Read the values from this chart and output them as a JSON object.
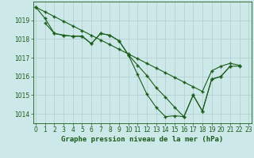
{
  "title": "Graphe pression niveau de la mer (hPa)",
  "hours": [
    0,
    1,
    2,
    3,
    4,
    5,
    6,
    7,
    8,
    9,
    10,
    11,
    12,
    13,
    14,
    15,
    16,
    17,
    18,
    19,
    20,
    21,
    22,
    23
  ],
  "line1": [
    1019.7,
    1019.1,
    1018.3,
    1018.2,
    1018.15,
    1018.15,
    1017.75,
    1018.3,
    1018.2,
    1017.9,
    1017.15,
    1016.1,
    1015.05,
    1014.35,
    1013.85,
    1013.9,
    1013.85,
    1015.0,
    1014.15,
    1015.85,
    1016.0,
    1016.55,
    null,
    null
  ],
  "line2": [
    null,
    1018.85,
    1018.3,
    1018.2,
    1018.15,
    1018.15,
    1017.75,
    1018.3,
    1018.2,
    1017.9,
    1017.15,
    1016.6,
    1016.05,
    1015.4,
    1014.9,
    1014.35,
    1013.85,
    1015.0,
    1014.15,
    1015.85,
    1016.0,
    1016.55,
    1016.55,
    null
  ],
  "line3": [
    1019.7,
    1019.45,
    1019.2,
    1018.95,
    1018.7,
    1018.45,
    1018.2,
    1017.95,
    1017.7,
    1017.45,
    1017.2,
    1016.95,
    1016.7,
    1016.45,
    1016.2,
    1015.95,
    1015.7,
    1015.45,
    1015.2,
    1016.3,
    1016.55,
    1016.7,
    1016.6,
    null
  ],
  "ylim": [
    1013.5,
    1020.0
  ],
  "yticks": [
    1014,
    1015,
    1016,
    1017,
    1018,
    1019
  ],
  "bg_color": "#cce8e8",
  "grid_color": "#b0cccc",
  "line_color": "#1a5c1a",
  "marker": "+",
  "lw": 0.8,
  "ms": 3.5,
  "mew": 1.0,
  "title_fontsize": 6.5,
  "tick_fontsize": 5.5
}
